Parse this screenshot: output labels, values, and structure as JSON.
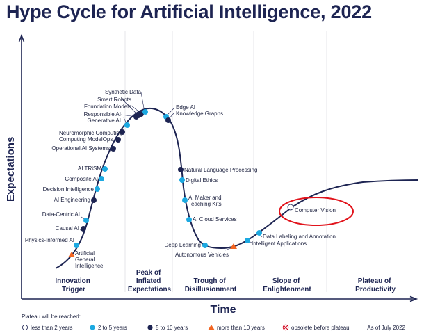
{
  "title": "Hype Cycle for Artificial Intelligence, 2022",
  "axes": {
    "y_label": "Expectations",
    "x_label": "Time"
  },
  "phases": [
    {
      "lines": [
        "Innovation",
        "Trigger"
      ]
    },
    {
      "lines": [
        "Peak of",
        "Inflated",
        "Expectations"
      ]
    },
    {
      "lines": [
        "Trough of",
        "Disillusionment"
      ]
    },
    {
      "lines": [
        "Slope of",
        "Enlightenment"
      ]
    },
    {
      "lines": [
        "Plateau of",
        "Productivity"
      ]
    }
  ],
  "colors": {
    "curve": "#1d2452",
    "less_than_2": "#ffffff",
    "two_to_five": "#1ca9e1",
    "five_to_ten": "#1d2452",
    "more_than_10": "#f26522",
    "obsolete": "#d0021b",
    "highlight": "#e1131b"
  },
  "technologies": [
    {
      "name": "Physics-Informed AI",
      "category": "2-5"
    },
    {
      "name": "Artificial General Intelligence",
      "category": ">10"
    },
    {
      "name": "Causal AI",
      "category": "5-10"
    },
    {
      "name": "Data-Centric AI",
      "category": "2-5"
    },
    {
      "name": "AI Engineering",
      "category": "5-10"
    },
    {
      "name": "Decision Intelligence",
      "category": "2-5"
    },
    {
      "name": "Composite AI",
      "category": "2-5"
    },
    {
      "name": "AI TRiSM",
      "category": "2-5"
    },
    {
      "name": "Operational AI Systems",
      "category": "5-10"
    },
    {
      "name": "Neuromorphic Computing",
      "category": "5-10"
    },
    {
      "name": "ModelOps",
      "category": "5-10"
    },
    {
      "name": "Generative AI",
      "category": "2-5"
    },
    {
      "name": "Responsible AI",
      "category": "5-10"
    },
    {
      "name": "Foundation Models",
      "category": "5-10"
    },
    {
      "name": "Smart Robots",
      "category": "5-10"
    },
    {
      "name": "Synthetic Data",
      "category": "2-5"
    },
    {
      "name": "Edge AI",
      "category": "2-5"
    },
    {
      "name": "Knowledge Graphs",
      "category": "5-10"
    },
    {
      "name": "Natural Language Processing",
      "category": "5-10"
    },
    {
      "name": "Digital Ethics",
      "category": "2-5"
    },
    {
      "name": "AI Maker and Teaching Kits",
      "category": "2-5"
    },
    {
      "name": "AI Cloud Services",
      "category": "2-5"
    },
    {
      "name": "Deep Learning",
      "category": "2-5"
    },
    {
      "name": "Autonomous Vehicles",
      "category": ">10"
    },
    {
      "name": "Intelligent Applications",
      "category": "2-5"
    },
    {
      "name": "Data Labeling and Annotation",
      "category": "2-5"
    },
    {
      "name": "Computer Vision",
      "category": "<2",
      "highlighted": true
    }
  ],
  "legend": {
    "title": "Plateau will be reached:",
    "items": [
      {
        "label": "less than 2 years",
        "marker": "circle-empty"
      },
      {
        "label": "2 to 5 years",
        "marker": "circle-light-blue"
      },
      {
        "label": "5 to 10 years",
        "marker": "circle-dark-blue"
      },
      {
        "label": "more than 10 years",
        "marker": "triangle-orange"
      },
      {
        "label": "obsolete before plateau",
        "marker": "circle-x-red"
      }
    ],
    "as_of": "As of July 2022"
  }
}
